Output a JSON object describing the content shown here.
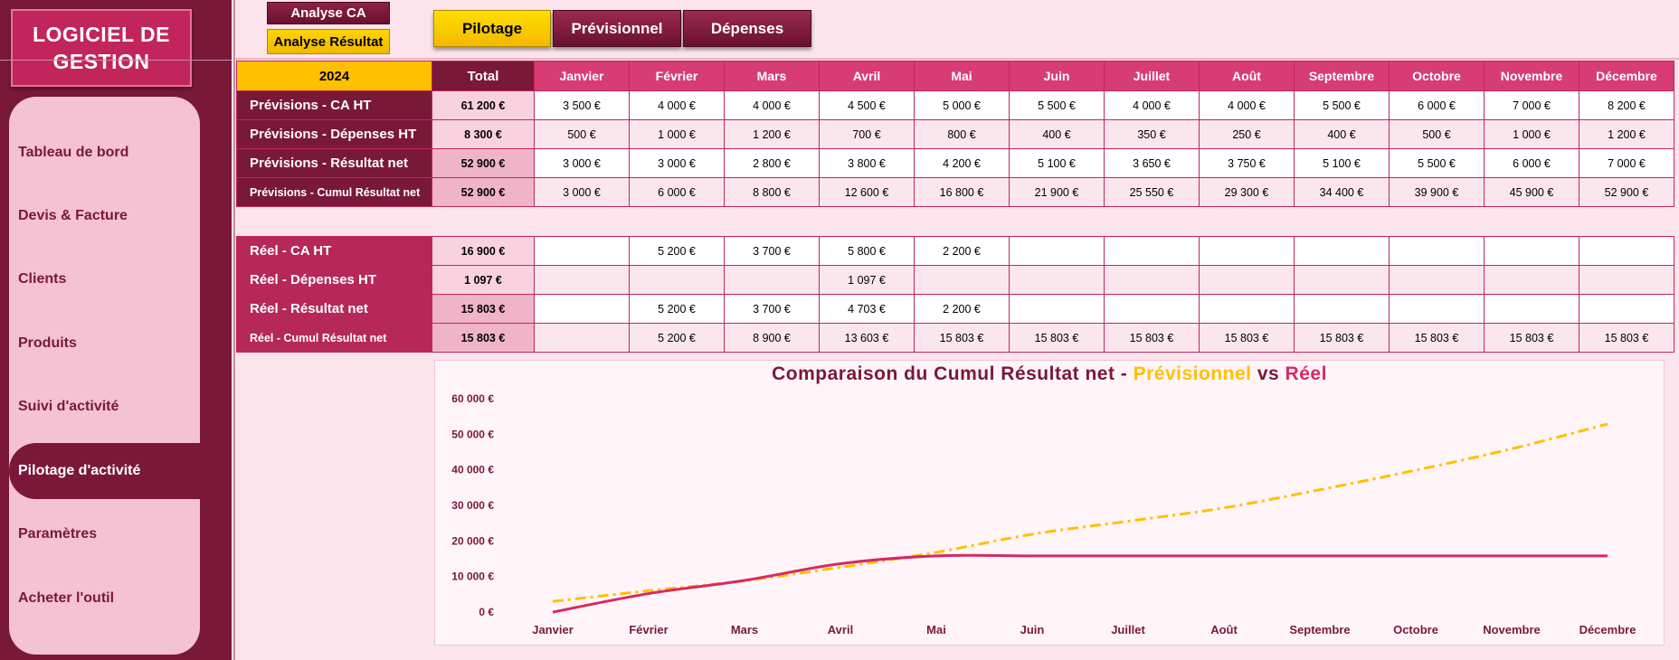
{
  "app": {
    "logo_line1": "LOGICIEL  DE",
    "logo_line2": "GESTION"
  },
  "sidebar": {
    "items": [
      {
        "label": "Tableau de bord"
      },
      {
        "label": "Devis & Facture"
      },
      {
        "label": "Clients"
      },
      {
        "label": "Produits"
      },
      {
        "label": "Suivi d'activité"
      },
      {
        "label": "Pilotage d'activité",
        "active": true
      },
      {
        "label": "Paramètres"
      },
      {
        "label": "Acheter l'outil"
      }
    ]
  },
  "top_buttons": {
    "analyse_ca": "Analyse CA",
    "analyse_resultat": "Analyse Résultat"
  },
  "tabs": {
    "pilotage": "Pilotage",
    "previsionnel": "Prévisionnel",
    "depenses": "Dépenses"
  },
  "table": {
    "year": "2024",
    "total_header": "Total",
    "months": [
      "Janvier",
      "Février",
      "Mars",
      "Avril",
      "Mai",
      "Juin",
      "Juillet",
      "Août",
      "Septembre",
      "Octobre",
      "Novembre",
      "Décembre"
    ],
    "previsions": [
      {
        "label": "Prévisions - CA HT",
        "total": "61 200 €",
        "values": [
          "3 500 €",
          "4 000 €",
          "4 000 €",
          "4 500 €",
          "5 000 €",
          "5 500 €",
          "4 000 €",
          "4 000 €",
          "5 500 €",
          "6 000 €",
          "7 000 €",
          "8 200 €"
        ]
      },
      {
        "label": "Prévisions - Dépenses HT",
        "total": "8 300 €",
        "values": [
          "500 €",
          "1 000 €",
          "1 200 €",
          "700 €",
          "800 €",
          "400 €",
          "350 €",
          "250 €",
          "400 €",
          "500 €",
          "1 000 €",
          "1 200 €"
        ]
      },
      {
        "label": "Prévisions - Résultat net",
        "total": "52 900 €",
        "values": [
          "3 000 €",
          "3 000 €",
          "2 800 €",
          "3 800 €",
          "4 200 €",
          "5 100 €",
          "3 650 €",
          "3 750 €",
          "5 100 €",
          "5 500 €",
          "6 000 €",
          "7 000 €"
        ]
      },
      {
        "label": "Prévisions - Cumul Résultat net",
        "total": "52 900 €",
        "values": [
          "3 000 €",
          "6 000 €",
          "8 800 €",
          "12 600 €",
          "16 800 €",
          "21 900 €",
          "25 550 €",
          "29 300 €",
          "34 400 €",
          "39 900 €",
          "45 900 €",
          "52 900 €"
        ]
      }
    ],
    "reel": [
      {
        "label": "Réel - CA HT",
        "total": "16 900 €",
        "values": [
          "",
          "5 200 €",
          "3 700 €",
          "5 800 €",
          "2 200 €",
          "",
          "",
          "",
          "",
          "",
          "",
          ""
        ]
      },
      {
        "label": "Réel - Dépenses HT",
        "total": "1 097 €",
        "values": [
          "",
          "",
          "",
          "1 097 €",
          "",
          "",
          "",
          "",
          "",
          "",
          "",
          ""
        ]
      },
      {
        "label": "Réel - Résultat net",
        "total": "15 803 €",
        "values": [
          "",
          "5 200 €",
          "3 700 €",
          "4 703 €",
          "2 200 €",
          "",
          "",
          "",
          "",
          "",
          "",
          ""
        ]
      },
      {
        "label": "Réel - Cumul Résultat net",
        "total": "15 803 €",
        "values": [
          "",
          "5 200 €",
          "8 900 €",
          "13 603 €",
          "15 803 €",
          "15 803 €",
          "15 803 €",
          "15 803 €",
          "15 803 €",
          "15 803 €",
          "15 803 €",
          "15 803 €"
        ]
      }
    ]
  },
  "colors": {
    "primary": "#7a1838",
    "accent_yellow": "#ffc000",
    "accent_pink": "#d62a62",
    "header_pink": "#d73c74"
  },
  "chart_data": {
    "type": "line",
    "title_part1": "Comparaison du Cumul Résultat net - ",
    "title_prev": "Prévisionnel",
    "title_vs": " vs ",
    "title_reel": "Réel",
    "categories": [
      "Janvier",
      "Février",
      "Mars",
      "Avril",
      "Mai",
      "Juin",
      "Juillet",
      "Août",
      "Septembre",
      "Octobre",
      "Novembre",
      "Décembre"
    ],
    "series": [
      {
        "name": "Prévisionnel",
        "color": "#ffc000",
        "style": "dash-dot",
        "values": [
          3000,
          6000,
          8800,
          12600,
          16800,
          21900,
          25550,
          29300,
          34400,
          39900,
          45900,
          52900
        ]
      },
      {
        "name": "Réel",
        "color": "#d62a62",
        "style": "solid",
        "values": [
          0,
          5200,
          8900,
          13603,
          15803,
          15803,
          15803,
          15803,
          15803,
          15803,
          15803,
          15803
        ]
      }
    ],
    "ylim": [
      0,
      60000
    ],
    "yticks": [
      0,
      10000,
      20000,
      30000,
      40000,
      50000,
      60000
    ],
    "ytick_labels": [
      "0 €",
      "10 000 €",
      "20 000 €",
      "30 000 €",
      "40 000 €",
      "50 000 €",
      "60 000 €"
    ],
    "grid": false
  }
}
